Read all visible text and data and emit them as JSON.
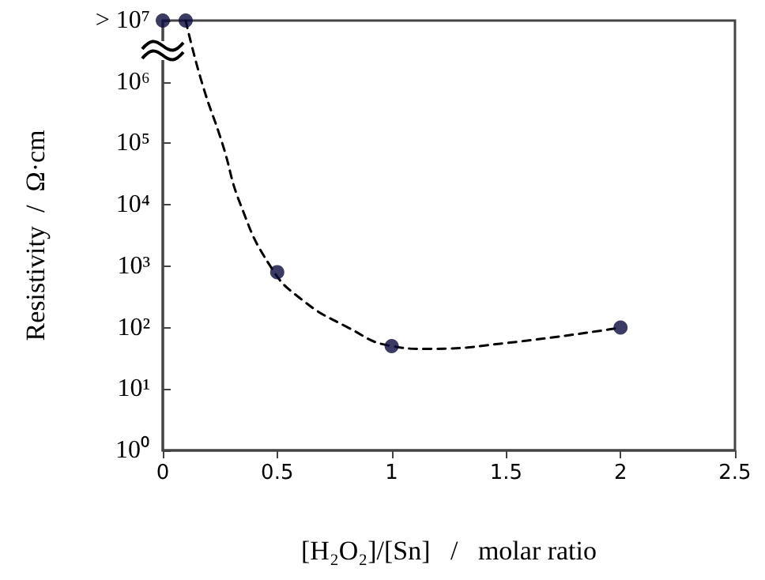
{
  "chart_data": {
    "type": "scatter",
    "xlabel": "[H₂O₂]/[Sn]   /   molar ratio",
    "ylabel": "Resistivity  /  Ω·cm",
    "log": "y",
    "grid": false,
    "xlim": [
      0,
      2.5
    ],
    "xticks": [
      {
        "value": 0,
        "label": "0"
      },
      {
        "value": 0.5,
        "label": "0.5"
      },
      {
        "value": 1,
        "label": "1"
      },
      {
        "value": 1.5,
        "label": "1.5"
      },
      {
        "value": 2,
        "label": "2"
      },
      {
        "value": 2.5,
        "label": "2.5"
      }
    ],
    "ylim": [
      1,
      10000000
    ],
    "yticks": [
      {
        "value": 1,
        "label": "10⁰"
      },
      {
        "value": 10,
        "label": "10¹"
      },
      {
        "value": 100,
        "label": "10²"
      },
      {
        "value": 1000,
        "label": "10³"
      },
      {
        "value": 10000,
        "label": "10⁴"
      },
      {
        "value": 100000,
        "label": "10⁵"
      },
      {
        "value": 1000000,
        "label": "10⁶"
      },
      {
        "value": 10000000,
        "label": "> 10⁷"
      }
    ],
    "series": [
      {
        "color": "#0a0a3c",
        "marker": "circle",
        "x": [
          0,
          0.1,
          0.5,
          1,
          2
        ],
        "values": [
          10000000,
          10000000,
          800,
          50,
          100
        ]
      },
      {
        "type": "line",
        "color": "#000000",
        "marker": "none",
        "line_style": "dashed",
        "x": [
          0.1,
          0.17,
          0.26,
          0.34,
          0.47,
          0.6,
          0.81,
          1,
          1.15,
          1.5,
          2
        ],
        "values": [
          10000000,
          1000000,
          100000,
          10000,
          1000,
          300,
          100,
          50,
          45,
          56,
          100
        ]
      }
    ]
  }
}
